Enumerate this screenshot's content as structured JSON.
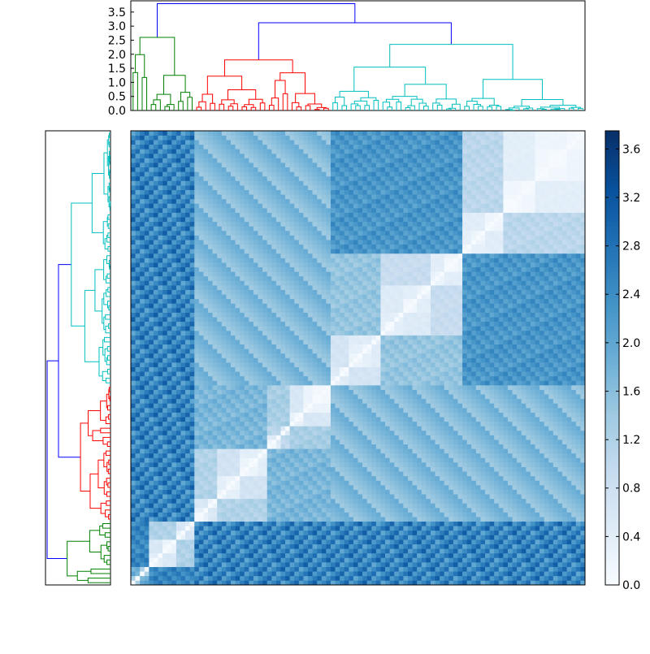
{
  "chart_data": [
    {
      "type": "dendrogram",
      "orientation": "top",
      "ylim": [
        0,
        3.9
      ],
      "yticks": [
        "0.0",
        "0.5",
        "1.0",
        "1.5",
        "2.0",
        "2.5",
        "3.0",
        "3.5"
      ],
      "cluster_colors": [
        "#008000",
        "#ff0000",
        "#00bfbf",
        "#0000ff"
      ],
      "root_height": 3.8,
      "second_merge_height": 3.12
    },
    {
      "type": "dendrogram",
      "orientation": "left"
    },
    {
      "type": "heatmap",
      "colormap": "Blues",
      "vmin": 0.0,
      "vmax": 3.75
    },
    {
      "type": "colorbar",
      "ticks": [
        "0.0",
        "0.4",
        "0.8",
        "1.2",
        "1.6",
        "2.0",
        "2.4",
        "2.8",
        "3.2",
        "3.6"
      ],
      "min": 0.0,
      "max": 3.75
    }
  ]
}
